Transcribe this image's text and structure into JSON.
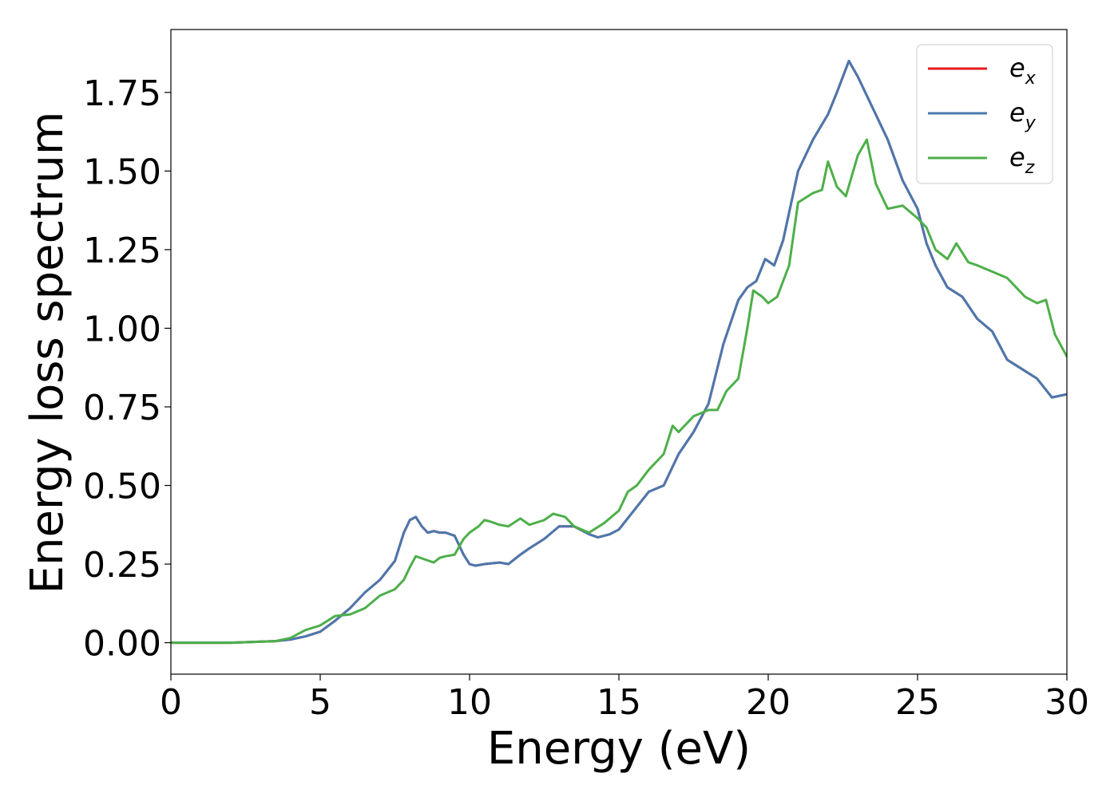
{
  "chart_data": {
    "type": "line",
    "title": "",
    "xlabel": "Energy (eV)",
    "ylabel": "Energy loss spectrum",
    "xlim": [
      0,
      30
    ],
    "ylim": [
      -0.1,
      1.95
    ],
    "xticks": [
      0,
      5,
      10,
      15,
      20,
      25,
      30
    ],
    "xtick_labels": [
      "0",
      "5",
      "10",
      "15",
      "20",
      "25",
      "30"
    ],
    "yticks": [
      0,
      0.25,
      0.5,
      0.75,
      1.0,
      1.25,
      1.5,
      1.75
    ],
    "ytick_labels": [
      "0.00",
      "0.25",
      "0.50",
      "0.75",
      "1.00",
      "1.25",
      "1.50",
      "1.75"
    ],
    "grid": false,
    "legend_position": "top-right",
    "series": [
      {
        "name": "e_x",
        "legend_base": "e",
        "legend_sub": "x",
        "color": "#e41a1c",
        "x": [
          0,
          2,
          3.5,
          4,
          4.5,
          5,
          5.5,
          6,
          6.5,
          7,
          7.5,
          7.8,
          8.0,
          8.2,
          8.4,
          8.6,
          8.8,
          9.0,
          9.2,
          9.5,
          9.8,
          10.0,
          10.2,
          10.5,
          11.0,
          11.3,
          11.7,
          12.0,
          12.5,
          13.0,
          13.5,
          14.0,
          14.3,
          14.7,
          15.0,
          15.5,
          16.0,
          16.5,
          17.0,
          17.5,
          18.0,
          18.5,
          19.0,
          19.3,
          19.6,
          19.9,
          20.2,
          20.5,
          21.0,
          21.5,
          22.0,
          22.3,
          22.7,
          23.0,
          23.5,
          24.0,
          24.5,
          25.0,
          25.3,
          25.6,
          26.0,
          26.5,
          27.0,
          27.5,
          28.0,
          28.5,
          29.0,
          29.5,
          30.0
        ],
        "values": [
          0.0,
          0.0,
          0.005,
          0.01,
          0.02,
          0.035,
          0.07,
          0.11,
          0.16,
          0.2,
          0.26,
          0.35,
          0.39,
          0.4,
          0.37,
          0.35,
          0.355,
          0.35,
          0.35,
          0.34,
          0.28,
          0.25,
          0.245,
          0.25,
          0.255,
          0.25,
          0.28,
          0.3,
          0.33,
          0.37,
          0.37,
          0.345,
          0.335,
          0.345,
          0.36,
          0.42,
          0.48,
          0.5,
          0.6,
          0.67,
          0.76,
          0.95,
          1.09,
          1.13,
          1.15,
          1.22,
          1.2,
          1.28,
          1.5,
          1.6,
          1.68,
          1.75,
          1.85,
          1.8,
          1.7,
          1.6,
          1.47,
          1.38,
          1.27,
          1.2,
          1.13,
          1.1,
          1.03,
          0.99,
          0.9,
          0.87,
          0.84,
          0.78,
          0.79
        ]
      },
      {
        "name": "e_y",
        "legend_base": "e",
        "legend_sub": "y",
        "color": "#4a78ae",
        "x": [
          0,
          2,
          3.5,
          4,
          4.5,
          5,
          5.5,
          6,
          6.5,
          7,
          7.5,
          7.8,
          8.0,
          8.2,
          8.4,
          8.6,
          8.8,
          9.0,
          9.2,
          9.5,
          9.8,
          10.0,
          10.2,
          10.5,
          11.0,
          11.3,
          11.7,
          12.0,
          12.5,
          13.0,
          13.5,
          14.0,
          14.3,
          14.7,
          15.0,
          15.5,
          16.0,
          16.5,
          17.0,
          17.5,
          18.0,
          18.5,
          19.0,
          19.3,
          19.6,
          19.9,
          20.2,
          20.5,
          21.0,
          21.5,
          22.0,
          22.3,
          22.7,
          23.0,
          23.5,
          24.0,
          24.5,
          25.0,
          25.3,
          25.6,
          26.0,
          26.5,
          27.0,
          27.5,
          28.0,
          28.5,
          29.0,
          29.5,
          30.0
        ],
        "values": [
          0.0,
          0.0,
          0.005,
          0.01,
          0.02,
          0.035,
          0.07,
          0.11,
          0.16,
          0.2,
          0.26,
          0.35,
          0.39,
          0.4,
          0.37,
          0.35,
          0.355,
          0.35,
          0.35,
          0.34,
          0.28,
          0.25,
          0.245,
          0.25,
          0.255,
          0.25,
          0.28,
          0.3,
          0.33,
          0.37,
          0.37,
          0.345,
          0.335,
          0.345,
          0.36,
          0.42,
          0.48,
          0.5,
          0.6,
          0.67,
          0.76,
          0.95,
          1.09,
          1.13,
          1.15,
          1.22,
          1.2,
          1.28,
          1.5,
          1.6,
          1.68,
          1.75,
          1.85,
          1.8,
          1.7,
          1.6,
          1.47,
          1.38,
          1.27,
          1.2,
          1.13,
          1.1,
          1.03,
          0.99,
          0.9,
          0.87,
          0.84,
          0.78,
          0.79
        ]
      },
      {
        "name": "e_z",
        "legend_base": "e",
        "legend_sub": "z",
        "color": "#4daf4a",
        "x": [
          0,
          2,
          3.5,
          4,
          4.5,
          5,
          5.5,
          6,
          6.5,
          7,
          7.5,
          7.8,
          8.0,
          8.2,
          8.5,
          8.8,
          9.0,
          9.2,
          9.5,
          9.8,
          10.0,
          10.3,
          10.5,
          10.7,
          11.0,
          11.3,
          11.7,
          12.0,
          12.5,
          12.8,
          13.2,
          13.5,
          14.0,
          14.5,
          15.0,
          15.3,
          15.6,
          16.0,
          16.5,
          16.8,
          17.0,
          17.5,
          18.0,
          18.3,
          18.6,
          19.0,
          19.3,
          19.5,
          19.8,
          20.0,
          20.3,
          20.7,
          21.0,
          21.5,
          21.8,
          22.0,
          22.3,
          22.6,
          23.0,
          23.3,
          23.6,
          24.0,
          24.5,
          25.0,
          25.3,
          25.6,
          26.0,
          26.3,
          26.7,
          27.0,
          27.5,
          28.0,
          28.3,
          28.6,
          29.0,
          29.3,
          29.6,
          30.0
        ],
        "values": [
          0.0,
          0.0,
          0.005,
          0.015,
          0.04,
          0.055,
          0.085,
          0.09,
          0.11,
          0.15,
          0.17,
          0.2,
          0.24,
          0.275,
          0.265,
          0.255,
          0.27,
          0.275,
          0.28,
          0.33,
          0.35,
          0.37,
          0.39,
          0.385,
          0.375,
          0.37,
          0.395,
          0.375,
          0.39,
          0.41,
          0.4,
          0.37,
          0.35,
          0.38,
          0.42,
          0.48,
          0.5,
          0.55,
          0.6,
          0.69,
          0.67,
          0.72,
          0.74,
          0.74,
          0.8,
          0.84,
          1.0,
          1.12,
          1.1,
          1.08,
          1.1,
          1.2,
          1.4,
          1.43,
          1.44,
          1.53,
          1.45,
          1.42,
          1.55,
          1.6,
          1.46,
          1.38,
          1.39,
          1.35,
          1.32,
          1.25,
          1.22,
          1.27,
          1.21,
          1.2,
          1.18,
          1.16,
          1.13,
          1.1,
          1.08,
          1.09,
          0.98,
          0.91
        ]
      }
    ]
  }
}
